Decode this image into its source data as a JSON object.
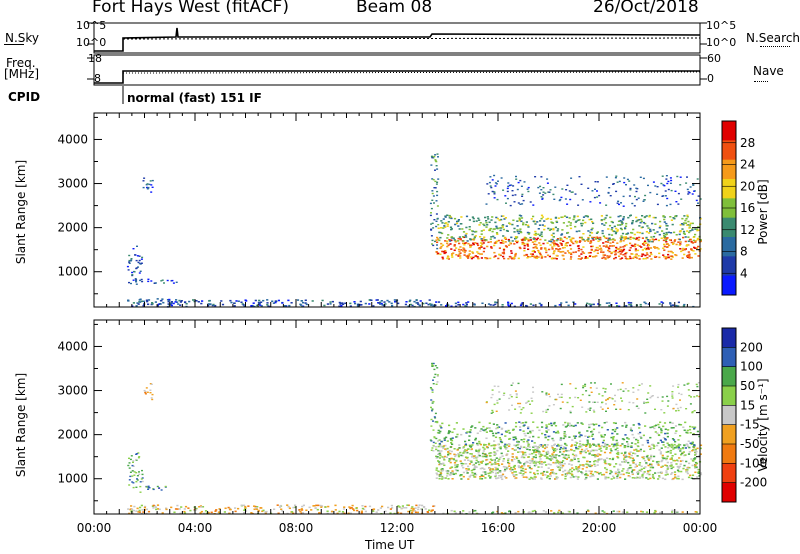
{
  "header": {
    "station": "Fort Hays West (fitACF)",
    "beam": "Beam 08",
    "date": "26/Oct/2018"
  },
  "top_panels": {
    "nsky_label": "N.Sky",
    "nsky_ticks": [
      "10^5",
      "10^0"
    ],
    "nsearch_label": "N.Search",
    "nsearch_ticks": [
      "10^5",
      "10^0"
    ],
    "freq_label": "Freq.",
    "freq_unit": "[MHz]",
    "freq_ticks": [
      "18",
      "8"
    ],
    "nave_label": "Nave",
    "nave_ticks": [
      "60",
      "0"
    ],
    "cpid_label": "CPID",
    "cpid_value": "normal (fast) 151 IF"
  },
  "chart_data": [
    {
      "type": "heatmap",
      "title": "",
      "xlabel": "Time UT",
      "ylabel": "Slant Range [km]",
      "x_ticks": [
        "00:00",
        "04:00",
        "08:00",
        "12:00",
        "16:00",
        "20:00",
        "00:00"
      ],
      "y_ticks": [
        1000,
        2000,
        3000,
        4000
      ],
      "ylim": [
        200,
        4600
      ],
      "colorbar": {
        "label": "Power [dB]",
        "ticks": [
          4,
          8,
          12,
          16,
          20,
          24,
          28
        ],
        "range": [
          0,
          32
        ],
        "colors": [
          "#0a1aff",
          "#1e3aa8",
          "#2a6aa0",
          "#3a8a70",
          "#7fbf3a",
          "#f0d21a",
          "#f59a1a",
          "#f05010",
          "#e00000"
        ]
      }
    },
    {
      "type": "heatmap",
      "title": "",
      "xlabel": "Time UT",
      "ylabel": "Slant Range [km]",
      "x_ticks": [
        "00:00",
        "04:00",
        "08:00",
        "12:00",
        "16:00",
        "20:00",
        "00:00"
      ],
      "y_ticks": [
        1000,
        2000,
        3000,
        4000
      ],
      "ylim": [
        200,
        4600
      ],
      "colorbar": {
        "label": "Velocity [m s⁻¹]",
        "ticks": [
          "200",
          "100",
          "50",
          "15",
          "-15",
          "-50",
          "-100",
          "-200"
        ],
        "colors": [
          "#1a2aa8",
          "#2e5fb5",
          "#4aa84a",
          "#8ad04a",
          "#c8c8c8",
          "#f0a020",
          "#f07a10",
          "#f04010",
          "#e00000"
        ]
      }
    }
  ]
}
